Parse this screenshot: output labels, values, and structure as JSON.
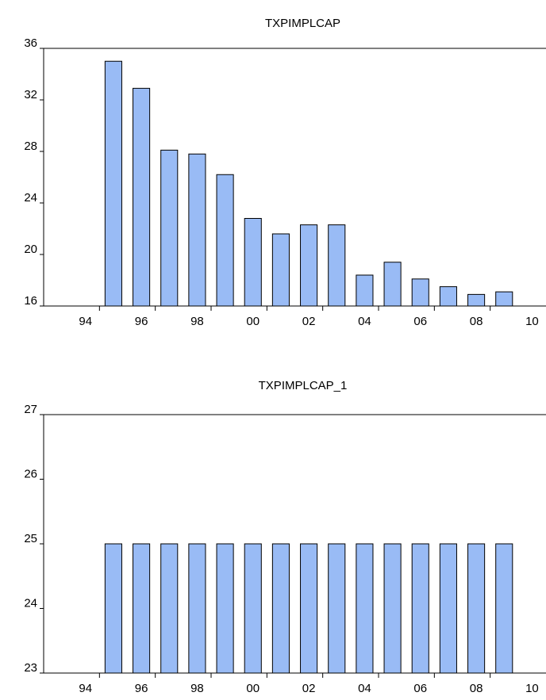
{
  "chart_data": [
    {
      "type": "bar",
      "title": "TXPIMPLCAP",
      "categories": [
        null,
        "94",
        null,
        "96",
        null,
        "98",
        null,
        "00",
        null,
        "02",
        null,
        "04",
        null,
        "06",
        null,
        "08",
        null,
        "10"
      ],
      "values": [
        null,
        null,
        35.0,
        32.9,
        28.1,
        27.8,
        26.2,
        22.8,
        21.6,
        22.3,
        22.3,
        18.4,
        19.4,
        18.1,
        17.5,
        16.9,
        17.1,
        null
      ],
      "color": "#99bbf5",
      "ylim": [
        16,
        36
      ],
      "yticks": [
        16,
        20,
        24,
        28,
        32,
        36
      ]
    },
    {
      "type": "bar",
      "title": "TXPIMPLCAP_1",
      "categories": [
        null,
        "94",
        null,
        "96",
        null,
        "98",
        null,
        "00",
        null,
        "02",
        null,
        "04",
        null,
        "06",
        null,
        "08",
        null,
        "10"
      ],
      "values": [
        null,
        null,
        25,
        25,
        25,
        25,
        25,
        25,
        25,
        25,
        25,
        25,
        25,
        25,
        25,
        25,
        25,
        null
      ],
      "color": "#99bbf5",
      "ylim": [
        23,
        27
      ],
      "yticks": [
        23,
        24,
        25,
        26,
        27
      ]
    }
  ]
}
